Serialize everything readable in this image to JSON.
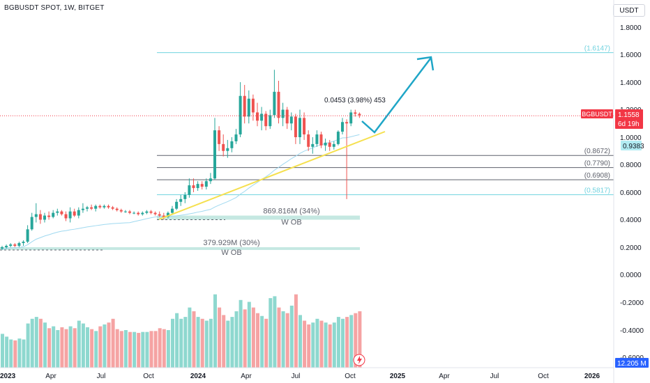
{
  "title": "BGBUSDT SPOT, 1W, BITGET",
  "currency_button": "USDT",
  "price_badge": {
    "symbol": "BGBUSDT",
    "price": "1.1558",
    "countdown": "6d 19h",
    "color": "#f23645"
  },
  "ma_badge": {
    "value": "0.9383",
    "color": "#b2ebf2"
  },
  "volume_badge": {
    "value": "12.205 M",
    "color": "#2962ff"
  },
  "measure_label": "0.0453 (3.98%) 453",
  "colors": {
    "up": "#26a69a",
    "down": "#ef5350",
    "up_vol": "#8ed8cf",
    "down_vol": "#f5a3a3",
    "trendline": "#f5e04e",
    "arrow": "#1fa6c7",
    "ma": "#9fd9f0",
    "ob": "#bfe6df"
  },
  "chart_data": {
    "type": "candlestick",
    "x_ticks": [
      "2023",
      "Apr",
      "Jul",
      "Oct",
      "2024",
      "Apr",
      "Jul",
      "Oct",
      "2025",
      "Apr",
      "Jul",
      "Oct",
      "2026"
    ],
    "y_ticks": [
      "1.8000",
      "1.6000",
      "1.4000",
      "1.2000",
      "1.0000",
      "0.8000",
      "0.6000",
      "0.4000",
      "0.2000",
      "0.0000",
      "-0.2000",
      "-0.4000",
      "-0.6000"
    ],
    "ylim": [
      -0.7,
      1.87
    ],
    "candles": [
      {
        "o": 0.19,
        "h": 0.21,
        "l": 0.18,
        "c": 0.2
      },
      {
        "o": 0.2,
        "h": 0.22,
        "l": 0.19,
        "c": 0.21
      },
      {
        "o": 0.21,
        "h": 0.23,
        "l": 0.2,
        "c": 0.22
      },
      {
        "o": 0.22,
        "h": 0.23,
        "l": 0.2,
        "c": 0.21
      },
      {
        "o": 0.21,
        "h": 0.24,
        "l": 0.2,
        "c": 0.23
      },
      {
        "o": 0.23,
        "h": 0.25,
        "l": 0.21,
        "c": 0.24
      },
      {
        "o": 0.24,
        "h": 0.36,
        "l": 0.23,
        "c": 0.33
      },
      {
        "o": 0.33,
        "h": 0.45,
        "l": 0.32,
        "c": 0.42
      },
      {
        "o": 0.42,
        "h": 0.52,
        "l": 0.38,
        "c": 0.44
      },
      {
        "o": 0.44,
        "h": 0.47,
        "l": 0.37,
        "c": 0.4
      },
      {
        "o": 0.4,
        "h": 0.45,
        "l": 0.38,
        "c": 0.43
      },
      {
        "o": 0.43,
        "h": 0.46,
        "l": 0.4,
        "c": 0.42
      },
      {
        "o": 0.42,
        "h": 0.47,
        "l": 0.41,
        "c": 0.45
      },
      {
        "o": 0.45,
        "h": 0.48,
        "l": 0.43,
        "c": 0.46
      },
      {
        "o": 0.46,
        "h": 0.47,
        "l": 0.43,
        "c": 0.44
      },
      {
        "o": 0.44,
        "h": 0.46,
        "l": 0.39,
        "c": 0.41
      },
      {
        "o": 0.41,
        "h": 0.49,
        "l": 0.38,
        "c": 0.46
      },
      {
        "o": 0.46,
        "h": 0.48,
        "l": 0.42,
        "c": 0.43
      },
      {
        "o": 0.43,
        "h": 0.49,
        "l": 0.41,
        "c": 0.47
      },
      {
        "o": 0.47,
        "h": 0.52,
        "l": 0.45,
        "c": 0.48
      },
      {
        "o": 0.48,
        "h": 0.5,
        "l": 0.46,
        "c": 0.49
      },
      {
        "o": 0.49,
        "h": 0.51,
        "l": 0.47,
        "c": 0.48
      },
      {
        "o": 0.48,
        "h": 0.51,
        "l": 0.46,
        "c": 0.5
      },
      {
        "o": 0.5,
        "h": 0.51,
        "l": 0.48,
        "c": 0.49
      },
      {
        "o": 0.49,
        "h": 0.51,
        "l": 0.48,
        "c": 0.5
      },
      {
        "o": 0.5,
        "h": 0.51,
        "l": 0.48,
        "c": 0.49
      },
      {
        "o": 0.49,
        "h": 0.5,
        "l": 0.47,
        "c": 0.48
      },
      {
        "o": 0.48,
        "h": 0.49,
        "l": 0.46,
        "c": 0.47
      },
      {
        "o": 0.47,
        "h": 0.48,
        "l": 0.45,
        "c": 0.46
      },
      {
        "o": 0.46,
        "h": 0.47,
        "l": 0.45,
        "c": 0.46
      },
      {
        "o": 0.46,
        "h": 0.47,
        "l": 0.44,
        "c": 0.45
      },
      {
        "o": 0.45,
        "h": 0.46,
        "l": 0.44,
        "c": 0.45
      },
      {
        "o": 0.45,
        "h": 0.46,
        "l": 0.43,
        "c": 0.44
      },
      {
        "o": 0.44,
        "h": 0.46,
        "l": 0.43,
        "c": 0.45
      },
      {
        "o": 0.45,
        "h": 0.47,
        "l": 0.44,
        "c": 0.46
      },
      {
        "o": 0.46,
        "h": 0.47,
        "l": 0.44,
        "c": 0.45
      },
      {
        "o": 0.45,
        "h": 0.46,
        "l": 0.43,
        "c": 0.44
      },
      {
        "o": 0.44,
        "h": 0.46,
        "l": 0.42,
        "c": 0.43
      },
      {
        "o": 0.43,
        "h": 0.45,
        "l": 0.4,
        "c": 0.42
      },
      {
        "o": 0.42,
        "h": 0.46,
        "l": 0.41,
        "c": 0.45
      },
      {
        "o": 0.45,
        "h": 0.5,
        "l": 0.44,
        "c": 0.48
      },
      {
        "o": 0.48,
        "h": 0.55,
        "l": 0.47,
        "c": 0.53
      },
      {
        "o": 0.53,
        "h": 0.58,
        "l": 0.5,
        "c": 0.55
      },
      {
        "o": 0.55,
        "h": 0.6,
        "l": 0.52,
        "c": 0.58
      },
      {
        "o": 0.58,
        "h": 0.7,
        "l": 0.56,
        "c": 0.65
      },
      {
        "o": 0.65,
        "h": 0.7,
        "l": 0.6,
        "c": 0.63
      },
      {
        "o": 0.63,
        "h": 0.68,
        "l": 0.61,
        "c": 0.66
      },
      {
        "o": 0.66,
        "h": 0.68,
        "l": 0.62,
        "c": 0.64
      },
      {
        "o": 0.64,
        "h": 0.7,
        "l": 0.62,
        "c": 0.68
      },
      {
        "o": 0.68,
        "h": 0.74,
        "l": 0.66,
        "c": 0.7
      },
      {
        "o": 0.7,
        "h": 1.14,
        "l": 0.69,
        "c": 1.05
      },
      {
        "o": 1.05,
        "h": 1.08,
        "l": 0.9,
        "c": 0.95
      },
      {
        "o": 0.95,
        "h": 1.02,
        "l": 0.86,
        "c": 0.9
      },
      {
        "o": 0.9,
        "h": 0.98,
        "l": 0.85,
        "c": 0.92
      },
      {
        "o": 0.92,
        "h": 1.0,
        "l": 0.89,
        "c": 0.97
      },
      {
        "o": 0.97,
        "h": 1.06,
        "l": 0.95,
        "c": 1.02
      },
      {
        "o": 1.02,
        "h": 1.4,
        "l": 1.0,
        "c": 1.3
      },
      {
        "o": 1.3,
        "h": 1.38,
        "l": 1.1,
        "c": 1.15
      },
      {
        "o": 1.15,
        "h": 1.34,
        "l": 1.1,
        "c": 1.28
      },
      {
        "o": 1.28,
        "h": 1.31,
        "l": 1.12,
        "c": 1.18
      },
      {
        "o": 1.18,
        "h": 1.25,
        "l": 1.08,
        "c": 1.12
      },
      {
        "o": 1.12,
        "h": 1.22,
        "l": 1.05,
        "c": 1.17
      },
      {
        "o": 1.17,
        "h": 1.19,
        "l": 1.05,
        "c": 1.08
      },
      {
        "o": 1.08,
        "h": 1.2,
        "l": 1.06,
        "c": 1.16
      },
      {
        "o": 1.16,
        "h": 1.49,
        "l": 1.14,
        "c": 1.33
      },
      {
        "o": 1.33,
        "h": 1.41,
        "l": 1.1,
        "c": 1.14
      },
      {
        "o": 1.14,
        "h": 1.25,
        "l": 1.08,
        "c": 1.2
      },
      {
        "o": 1.2,
        "h": 1.22,
        "l": 1.06,
        "c": 1.1
      },
      {
        "o": 1.1,
        "h": 1.18,
        "l": 1.05,
        "c": 1.15
      },
      {
        "o": 1.15,
        "h": 1.17,
        "l": 0.95,
        "c": 1.0
      },
      {
        "o": 1.0,
        "h": 1.2,
        "l": 0.95,
        "c": 1.14
      },
      {
        "o": 1.14,
        "h": 1.18,
        "l": 0.98,
        "c": 1.02
      },
      {
        "o": 1.02,
        "h": 1.05,
        "l": 0.9,
        "c": 0.93
      },
      {
        "o": 0.93,
        "h": 1.0,
        "l": 0.88,
        "c": 0.95
      },
      {
        "o": 0.95,
        "h": 1.05,
        "l": 0.93,
        "c": 1.02
      },
      {
        "o": 1.02,
        "h": 1.04,
        "l": 0.92,
        "c": 0.94
      },
      {
        "o": 0.94,
        "h": 0.99,
        "l": 0.9,
        "c": 0.96
      },
      {
        "o": 0.96,
        "h": 0.98,
        "l": 0.9,
        "c": 0.93
      },
      {
        "o": 0.93,
        "h": 0.97,
        "l": 0.91,
        "c": 0.95
      },
      {
        "o": 0.95,
        "h": 1.05,
        "l": 0.94,
        "c": 1.04
      },
      {
        "o": 1.04,
        "h": 1.14,
        "l": 1.02,
        "c": 1.11
      },
      {
        "o": 1.11,
        "h": 1.13,
        "l": 0.55,
        "c": 1.1
      },
      {
        "o": 1.1,
        "h": 1.2,
        "l": 1.08,
        "c": 1.18
      },
      {
        "o": 1.18,
        "h": 1.2,
        "l": 1.15,
        "c": 1.17
      },
      {
        "o": 1.17,
        "h": 1.18,
        "l": 1.14,
        "c": 1.16
      }
    ],
    "volume_heights": [
      0.36,
      0.33,
      0.3,
      0.29,
      0.31,
      0.3,
      0.47,
      0.52,
      0.54,
      0.52,
      0.48,
      0.42,
      0.44,
      0.4,
      0.43,
      0.41,
      0.44,
      0.42,
      0.5,
      0.47,
      0.43,
      0.41,
      0.39,
      0.44,
      0.46,
      0.48,
      0.52,
      0.41,
      0.39,
      0.4,
      0.38,
      0.38,
      0.37,
      0.38,
      0.38,
      0.39,
      0.39,
      0.42,
      0.41,
      0.4,
      0.52,
      0.58,
      0.52,
      0.54,
      0.64,
      0.6,
      0.54,
      0.52,
      0.5,
      0.52,
      0.78,
      0.64,
      0.56,
      0.5,
      0.54,
      0.6,
      0.72,
      0.62,
      0.7,
      0.64,
      0.58,
      0.55,
      0.52,
      0.74,
      0.76,
      0.64,
      0.6,
      0.58,
      0.66,
      0.78,
      0.56,
      0.5,
      0.46,
      0.48,
      0.52,
      0.5,
      0.48,
      0.46,
      0.48,
      0.54,
      0.52,
      0.54,
      0.56,
      0.58,
      0.6
    ]
  },
  "fib_levels": [
    {
      "label": "(1.6147)",
      "value": 1.6147,
      "color": "#6fd2df"
    },
    {
      "label": "(0.8672)",
      "value": 0.8672,
      "color": "#5d606b"
    },
    {
      "label": "(0.7790)",
      "value": 0.779,
      "color": "#5d606b"
    },
    {
      "label": "(0.6908)",
      "value": 0.6908,
      "color": "#5d606b"
    },
    {
      "label": "(0.5817)",
      "value": 0.5817,
      "color": "#6fd2df"
    }
  ],
  "order_blocks": [
    {
      "volume": "869.816M (34%)",
      "label": "W OB",
      "top": 0.43,
      "bottom": 0.4
    },
    {
      "volume": "379.929M (30%)",
      "label": "W OB",
      "top": 0.2,
      "bottom": 0.18
    }
  ]
}
